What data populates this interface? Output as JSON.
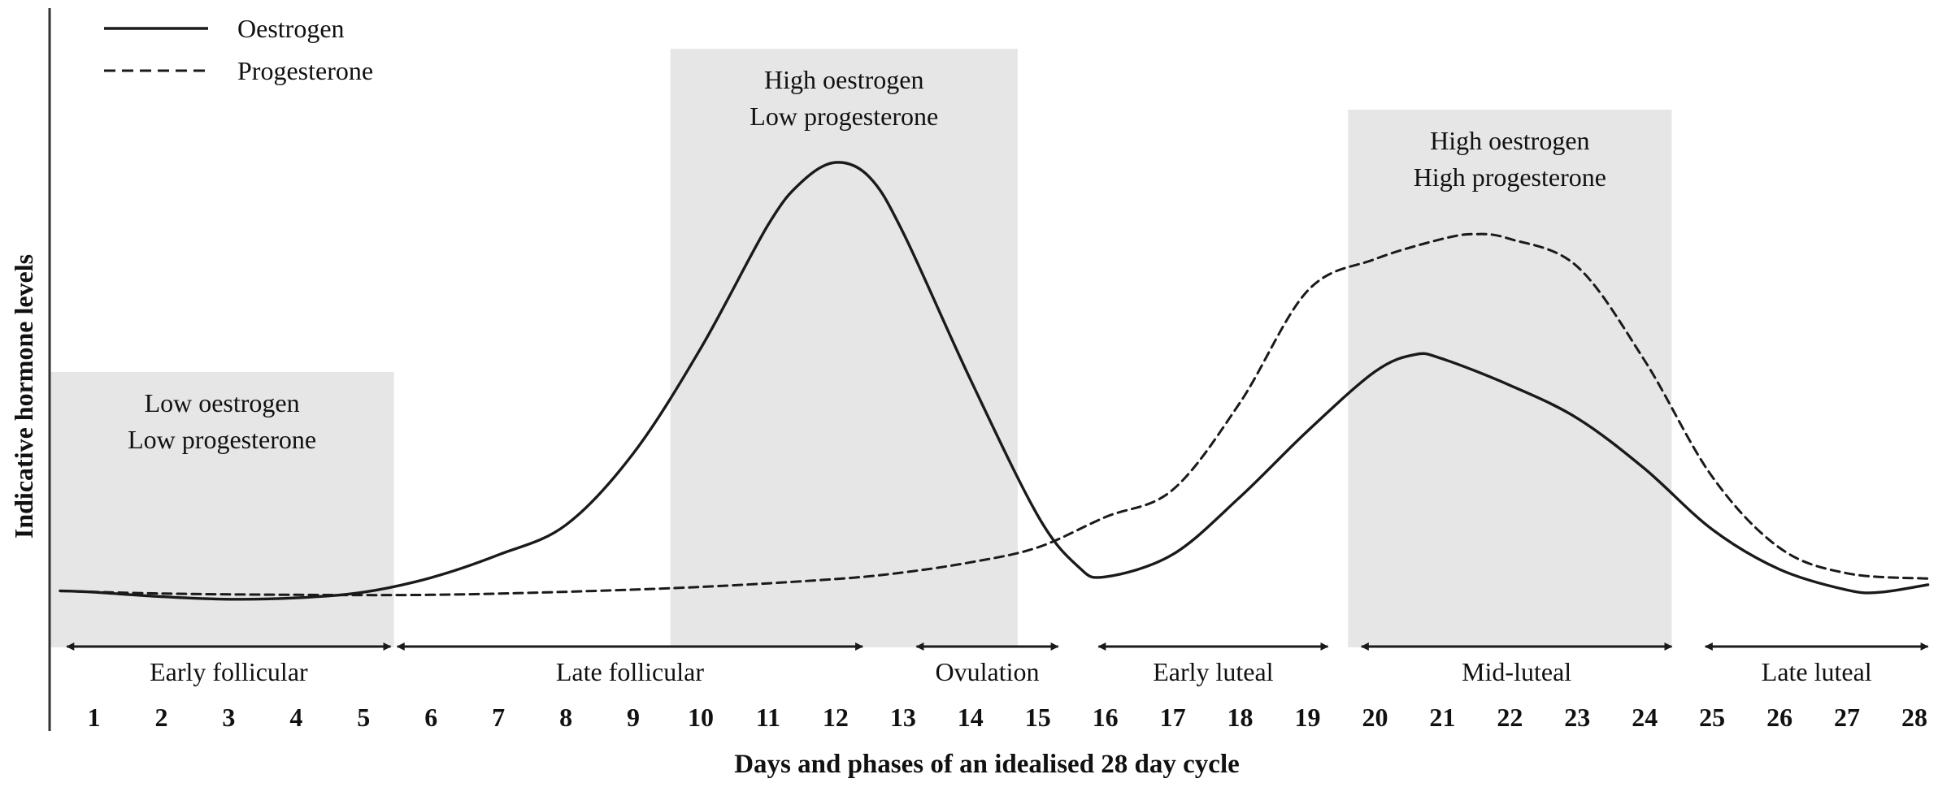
{
  "chart_data": {
    "type": "line",
    "title": "",
    "xlabel": "Days and phases of an idealised 28 day cycle",
    "ylabel": "Indicative hormone levels",
    "xlim": [
      0.35,
      28.25
    ],
    "ylim": [
      0,
      100
    ],
    "grid": false,
    "legend_position": "top-left",
    "x_ticks": [
      "1",
      "2",
      "3",
      "4",
      "5",
      "6",
      "7",
      "8",
      "9",
      "10",
      "11",
      "12",
      "13",
      "14",
      "15",
      "16",
      "17",
      "18",
      "19",
      "20",
      "21",
      "22",
      "23",
      "24",
      "25",
      "26",
      "27",
      "28"
    ],
    "series": [
      {
        "name": "Oestrogen",
        "style": "solid",
        "color": "#1a1a1a",
        "points": [
          [
            0.5,
            2.5
          ],
          [
            1,
            2.2
          ],
          [
            2,
            1.2
          ],
          [
            3,
            0.6
          ],
          [
            4,
            0.9
          ],
          [
            5,
            2.2
          ],
          [
            6,
            5.5
          ],
          [
            7,
            10.7
          ],
          [
            8,
            17.5
          ],
          [
            9,
            33.8
          ],
          [
            10,
            57.7
          ],
          [
            11,
            85.8
          ],
          [
            11.5,
            95.6
          ],
          [
            12,
            100
          ],
          [
            12.5,
            96.7
          ],
          [
            13,
            84.1
          ],
          [
            14,
            50.6
          ],
          [
            15,
            19.6
          ],
          [
            15.6,
            8.0
          ],
          [
            16,
            5.7
          ],
          [
            17,
            10.8
          ],
          [
            18,
            23.9
          ],
          [
            19,
            38.9
          ],
          [
            20,
            52.4
          ],
          [
            20.6,
            56.3
          ],
          [
            21,
            55.3
          ],
          [
            22,
            49.3
          ],
          [
            23,
            41.8
          ],
          [
            24,
            30.3
          ],
          [
            25,
            16.5
          ],
          [
            26,
            7.4
          ],
          [
            27,
            2.7
          ],
          [
            27.5,
            2.2
          ],
          [
            28.2,
            3.9
          ]
        ]
      },
      {
        "name": "Progesterone",
        "style": "dashed",
        "color": "#1a1a1a",
        "points": [
          [
            0.5,
            2.5
          ],
          [
            2,
            1.9
          ],
          [
            4,
            1.6
          ],
          [
            6,
            1.6
          ],
          [
            8,
            2.3
          ],
          [
            10,
            3.4
          ],
          [
            12,
            5.2
          ],
          [
            13,
            6.7
          ],
          [
            14,
            9.0
          ],
          [
            15,
            12.4
          ],
          [
            16,
            19.3
          ],
          [
            17,
            25.5
          ],
          [
            18,
            45.4
          ],
          [
            19,
            70.8
          ],
          [
            20,
            78.0
          ],
          [
            21,
            82.6
          ],
          [
            21.5,
            83.7
          ],
          [
            22,
            82.6
          ],
          [
            23,
            76.3
          ],
          [
            24,
            54.9
          ],
          [
            25,
            28.5
          ],
          [
            26,
            12.3
          ],
          [
            27,
            6.5
          ],
          [
            28.2,
            5.3
          ]
        ]
      }
    ],
    "shaded_regions": [
      {
        "x_start": 0.35,
        "x_end": 5.45,
        "label_lines": [
          "Low oestrogen",
          "Low progesterone"
        ]
      },
      {
        "x_start": 9.55,
        "x_end": 14.7,
        "label_lines": [
          "High oestrogen",
          "Low progesterone"
        ]
      },
      {
        "x_start": 19.6,
        "x_end": 24.4,
        "label_lines": [
          "High oestrogen",
          "High progesterone"
        ]
      }
    ],
    "phases": [
      {
        "label": "Early follicular",
        "x_start": 0.6,
        "x_end": 5.4
      },
      {
        "label": "Late follicular",
        "x_start": 5.5,
        "x_end": 12.4
      },
      {
        "label": "Ovulation",
        "x_start": 13.2,
        "x_end": 15.3
      },
      {
        "label": "Early luteal",
        "x_start": 15.9,
        "x_end": 19.3
      },
      {
        "label": "Mid-luteal",
        "x_start": 19.8,
        "x_end": 24.4
      },
      {
        "label": "Late luteal",
        "x_start": 24.9,
        "x_end": 28.2
      }
    ],
    "colors": {
      "line": "#1a1a1a",
      "shade": "#e6e6e6",
      "axis": "#333333",
      "text": "#111111"
    }
  }
}
